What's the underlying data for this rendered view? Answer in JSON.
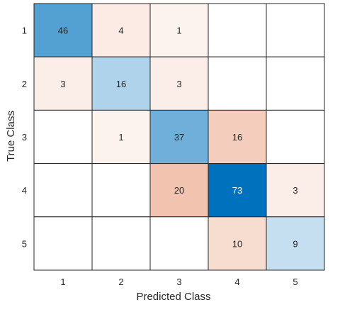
{
  "chart_data": {
    "type": "heatmap",
    "title": "",
    "xlabel": "Predicted Class",
    "ylabel": "True Class",
    "x_categories": [
      "1",
      "2",
      "3",
      "4",
      "5"
    ],
    "y_categories": [
      "1",
      "2",
      "3",
      "4",
      "5"
    ],
    "values": [
      [
        46,
        4,
        1,
        null,
        null
      ],
      [
        3,
        16,
        3,
        null,
        null
      ],
      [
        null,
        1,
        37,
        16,
        null
      ],
      [
        null,
        null,
        20,
        73,
        3
      ],
      [
        null,
        null,
        null,
        10,
        9
      ]
    ],
    "colors": {
      "diagonal": "#0072BD",
      "off_diagonal": "#D95319",
      "empty": "#FFFFFF",
      "grid": "#262626",
      "text_dark": "#262626",
      "text_light": "#FFFFFF"
    }
  }
}
